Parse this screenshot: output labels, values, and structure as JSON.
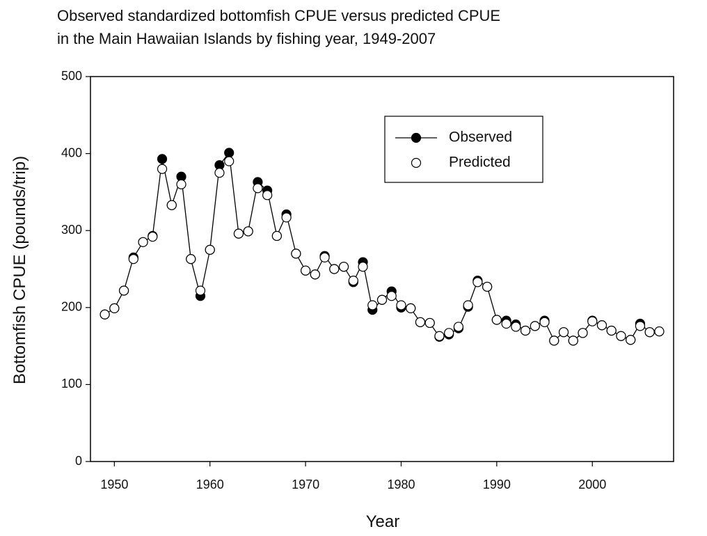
{
  "chart_data": {
    "type": "line",
    "title": [
      "Observed standardized bottomfish CPUE versus predicted CPUE",
      "in the Main Hawaiian Islands by fishing year, 1949-2007"
    ],
    "x_label": "Year",
    "y_label": "Bottomfish CPUE (pounds/trip)",
    "x": [
      1949,
      1950,
      1951,
      1952,
      1953,
      1954,
      1955,
      1956,
      1957,
      1958,
      1959,
      1960,
      1961,
      1962,
      1963,
      1964,
      1965,
      1966,
      1967,
      1968,
      1969,
      1970,
      1971,
      1972,
      1973,
      1974,
      1975,
      1976,
      1977,
      1978,
      1979,
      1980,
      1981,
      1982,
      1983,
      1984,
      1985,
      1986,
      1987,
      1988,
      1989,
      1990,
      1991,
      1992,
      1993,
      1994,
      1995,
      1996,
      1997,
      1998,
      1999,
      2000,
      2001,
      2002,
      2003,
      2004,
      2005,
      2006,
      2007
    ],
    "series": [
      {
        "name": "Observed",
        "color": "#000000",
        "marker_fill": "#000000",
        "line": true,
        "values": [
          191,
          199,
          222,
          265,
          285,
          293,
          393,
          333,
          370,
          263,
          215,
          275,
          385,
          401,
          296,
          299,
          363,
          352,
          293,
          321,
          270,
          248,
          243,
          267,
          250,
          253,
          233,
          259,
          197,
          210,
          221,
          200,
          199,
          181,
          180,
          162,
          165,
          173,
          201,
          235,
          227,
          184,
          183,
          178,
          170,
          176,
          183,
          157,
          168,
          157,
          167,
          183,
          177,
          170,
          163,
          158,
          179,
          168,
          169
        ]
      },
      {
        "name": "Predicted",
        "color": "#000000",
        "marker_fill": "#ffffff",
        "line": false,
        "values": [
          191,
          199,
          222,
          263,
          285,
          292,
          380,
          333,
          360,
          263,
          222,
          275,
          375,
          390,
          296,
          299,
          355,
          346,
          293,
          317,
          270,
          248,
          243,
          265,
          250,
          253,
          235,
          253,
          203,
          210,
          215,
          203,
          199,
          181,
          180,
          163,
          167,
          175,
          203,
          233,
          227,
          184,
          179,
          175,
          170,
          176,
          181,
          157,
          168,
          157,
          167,
          182,
          177,
          170,
          163,
          158,
          176,
          168,
          169
        ]
      }
    ],
    "xlim": [
      1947.5,
      2008.5
    ],
    "xticks": [
      1950,
      1960,
      1970,
      1980,
      1990,
      2000
    ],
    "ylim": [
      0,
      500
    ],
    "yticks": [
      0,
      100,
      200,
      300,
      400,
      500
    ],
    "grid": false
  }
}
